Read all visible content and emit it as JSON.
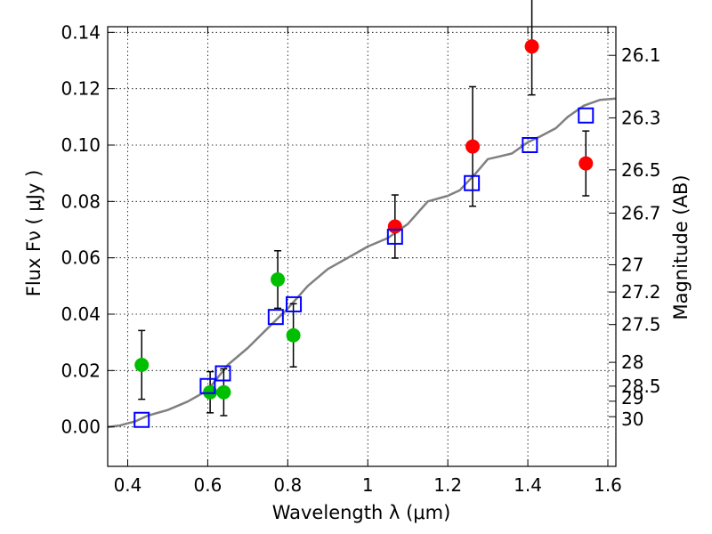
{
  "chart_data": {
    "type": "scatter",
    "xlabel": "Wavelength  λ (μm)",
    "ylabel": "Flux  Fν  ( μJy )",
    "y2label": "Magnitude (AB)",
    "xlim": [
      0.35,
      1.62
    ],
    "ylim": [
      -0.014,
      0.142
    ],
    "grid": true,
    "xticks": [
      0.4,
      0.6,
      0.8,
      1.0,
      1.2,
      1.4,
      1.6
    ],
    "xtick_labels": [
      "0.4",
      "0.6",
      "0.8",
      "1",
      "1.2",
      "1.4",
      "1.6"
    ],
    "yticks": [
      0.0,
      0.02,
      0.04,
      0.06,
      0.08,
      0.1,
      0.12,
      0.14
    ],
    "ytick_labels": [
      "0.00",
      "0.02",
      "0.04",
      "0.06",
      "0.08",
      "0.10",
      "0.12",
      "0.14"
    ],
    "mag_ticks": [
      "26.1",
      "26.3",
      "26.5",
      "26.7",
      "27",
      "27.2",
      "27.5",
      "28",
      "28.5",
      "29",
      "30"
    ],
    "zeropoint_mag": 23.9,
    "series": [
      {
        "marker": "circle",
        "color": "#00bf00",
        "points": [
          {
            "x": 0.435,
            "y": 0.022,
            "err": 0.0122
          },
          {
            "x": 0.606,
            "y": 0.0123,
            "err": 0.0073
          },
          {
            "x": 0.64,
            "y": 0.0123,
            "err": 0.0083
          },
          {
            "x": 0.775,
            "y": 0.0523,
            "err": 0.0102
          },
          {
            "x": 0.814,
            "y": 0.0325,
            "err": 0.0112
          }
        ]
      },
      {
        "marker": "circle",
        "color": "#ff0000",
        "points": [
          {
            "x": 1.068,
            "y": 0.0711,
            "err": 0.0112
          },
          {
            "x": 1.262,
            "y": 0.0995,
            "err": 0.0212
          },
          {
            "x": 1.41,
            "y": 0.135,
            "err": 0.0172
          },
          {
            "x": 1.545,
            "y": 0.0935,
            "err": 0.0115
          }
        ]
      },
      {
        "marker": "square",
        "color": "#0000ff",
        "points": [
          {
            "x": 0.435,
            "y": 0.0025
          },
          {
            "x": 0.6,
            "y": 0.0145
          },
          {
            "x": 0.638,
            "y": 0.019
          },
          {
            "x": 0.77,
            "y": 0.039
          },
          {
            "x": 0.815,
            "y": 0.0435
          },
          {
            "x": 1.068,
            "y": 0.0675
          },
          {
            "x": 1.26,
            "y": 0.0865
          },
          {
            "x": 1.405,
            "y": 0.1
          },
          {
            "x": 1.545,
            "y": 0.1105
          }
        ]
      },
      {
        "type": "line",
        "color": "#808080",
        "x": [
          0.35,
          0.38,
          0.42,
          0.45,
          0.5,
          0.55,
          0.6,
          0.65,
          0.7,
          0.75,
          0.8,
          0.85,
          0.9,
          0.95,
          1.0,
          1.05,
          1.1,
          1.15,
          1.2,
          1.23,
          1.27,
          1.3,
          1.33,
          1.36,
          1.4,
          1.43,
          1.47,
          1.5,
          1.54,
          1.58,
          1.62
        ],
        "y": [
          0.0,
          0.0005,
          0.002,
          0.004,
          0.006,
          0.009,
          0.013,
          0.022,
          0.028,
          0.035,
          0.042,
          0.05,
          0.056,
          0.06,
          0.064,
          0.067,
          0.072,
          0.08,
          0.082,
          0.084,
          0.09,
          0.095,
          0.096,
          0.097,
          0.101,
          0.103,
          0.106,
          0.11,
          0.114,
          0.116,
          0.1165
        ]
      }
    ]
  }
}
